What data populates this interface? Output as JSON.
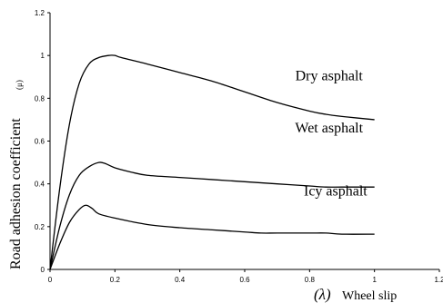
{
  "chart_data": {
    "type": "line",
    "title": "",
    "xlabel_symbol": "(λ)",
    "xlabel": "Wheel slip",
    "ylabel": "Road adhesion coefficient",
    "ylabel_symbol": "(μ)",
    "xlim": [
      0,
      1.2
    ],
    "ylim": [
      0,
      1.2
    ],
    "xticks": [
      "0",
      "0.2",
      "0.4",
      "0.6",
      "0.8",
      "1",
      "1.2"
    ],
    "yticks": [
      "0",
      "0.2",
      "0.4",
      "0.6",
      "0.8",
      "1",
      "1.2"
    ],
    "grid": false,
    "series": [
      {
        "name": "Dry asphalt",
        "x": [
          0,
          0.03,
          0.06,
          0.09,
          0.12,
          0.15,
          0.18,
          0.2,
          0.22,
          0.3,
          0.4,
          0.5,
          0.6,
          0.7,
          0.8,
          0.85,
          0.9,
          1.0
        ],
        "y": [
          0,
          0.38,
          0.68,
          0.87,
          0.96,
          0.99,
          1.0,
          1.0,
          0.99,
          0.96,
          0.92,
          0.88,
          0.83,
          0.78,
          0.74,
          0.725,
          0.715,
          0.7
        ]
      },
      {
        "name": "Wet asphalt",
        "x": [
          0,
          0.03,
          0.06,
          0.09,
          0.12,
          0.15,
          0.17,
          0.2,
          0.25,
          0.3,
          0.4,
          0.5,
          0.6,
          0.7,
          0.8,
          0.85,
          0.9,
          1.0
        ],
        "y": [
          0,
          0.2,
          0.35,
          0.44,
          0.48,
          0.5,
          0.495,
          0.475,
          0.455,
          0.44,
          0.43,
          0.42,
          0.41,
          0.4,
          0.39,
          0.385,
          0.385,
          0.385
        ]
      },
      {
        "name": "Icy asphalt",
        "x": [
          0,
          0.03,
          0.06,
          0.09,
          0.11,
          0.13,
          0.15,
          0.2,
          0.3,
          0.4,
          0.5,
          0.6,
          0.65,
          0.7,
          0.8,
          0.85,
          0.9,
          1.0
        ],
        "y": [
          0,
          0.12,
          0.22,
          0.28,
          0.3,
          0.285,
          0.26,
          0.24,
          0.21,
          0.195,
          0.185,
          0.175,
          0.17,
          0.17,
          0.17,
          0.17,
          0.165,
          0.165
        ]
      }
    ],
    "annotations": [
      {
        "text": "Dry asphalt",
        "x": 0.86,
        "y": 0.885
      },
      {
        "text": "Wet asphalt",
        "x": 0.86,
        "y": 0.64
      },
      {
        "text": "Icy asphalt",
        "x": 0.88,
        "y": 0.345
      }
    ]
  }
}
